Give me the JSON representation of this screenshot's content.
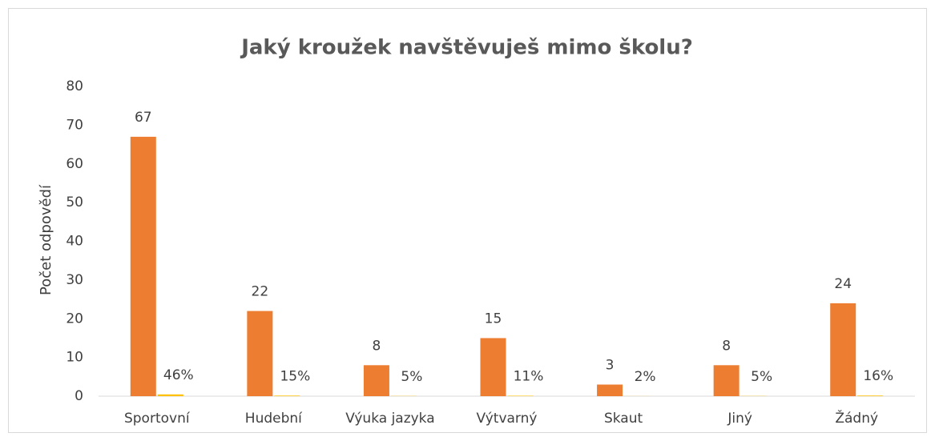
{
  "chart_data": {
    "type": "bar",
    "title": "Jaký kroužek navštěvuješ mimo školu?",
    "y_label": "Počet odpovědí",
    "categories": [
      "Sportovní",
      "Hudební",
      "Výuka jazyka",
      "Výtvarný",
      "Skaut",
      "Jiný",
      "Žádný"
    ],
    "series": [
      {
        "color": "#ed7d31",
        "values": [
          67,
          22,
          8,
          15,
          3,
          8,
          24
        ]
      },
      {
        "color": "#ffc000",
        "values": [
          0.46,
          0.15,
          0.05,
          0.11,
          0.02,
          0.05,
          0.16
        ],
        "value_labels": [
          "46%",
          "15%",
          "5%",
          "11%",
          "2%",
          "5%",
          "16%"
        ]
      }
    ],
    "ylim": [
      0,
      80
    ],
    "yticks": [
      0,
      10,
      20,
      30,
      40,
      50,
      60,
      70,
      80
    ],
    "grid": false
  }
}
